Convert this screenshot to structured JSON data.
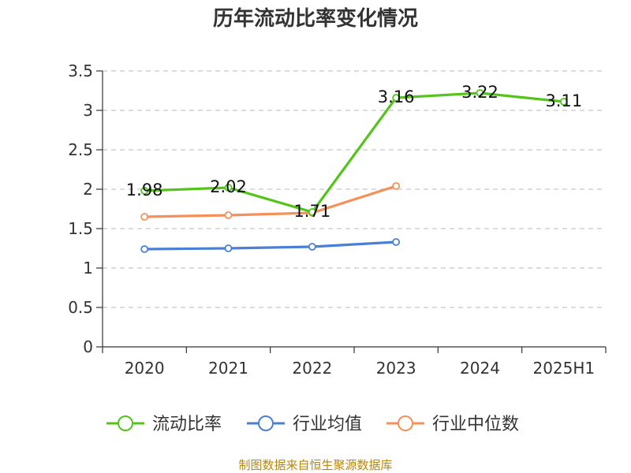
{
  "chart_data": {
    "type": "line",
    "title": "历年流动比率变化情况",
    "categories": [
      "2020",
      "2021",
      "2022",
      "2023",
      "2024",
      "2025H1"
    ],
    "ylim": [
      0,
      3.5
    ],
    "yticks": [
      "0",
      "0.5",
      "1",
      "1.5",
      "2",
      "2.5",
      "3",
      "3.5"
    ],
    "grid": true,
    "legend_position": "bottom",
    "series": [
      {
        "name": "流动比率",
        "color": "#52c41a",
        "values": [
          1.98,
          2.02,
          1.71,
          3.16,
          3.22,
          3.11
        ],
        "labels": [
          "1.98",
          "2.02",
          "1.71",
          "3.16",
          "3.22",
          "3.11"
        ]
      },
      {
        "name": "行业均值",
        "color": "#4a7fd4",
        "values": [
          1.24,
          1.25,
          1.27,
          1.33,
          null,
          null
        ]
      },
      {
        "name": "行业中位数",
        "color": "#f4905a",
        "values": [
          1.65,
          1.67,
          1.7,
          2.04,
          null,
          null
        ]
      }
    ]
  },
  "source": "制图数据来自恒生聚源数据库"
}
